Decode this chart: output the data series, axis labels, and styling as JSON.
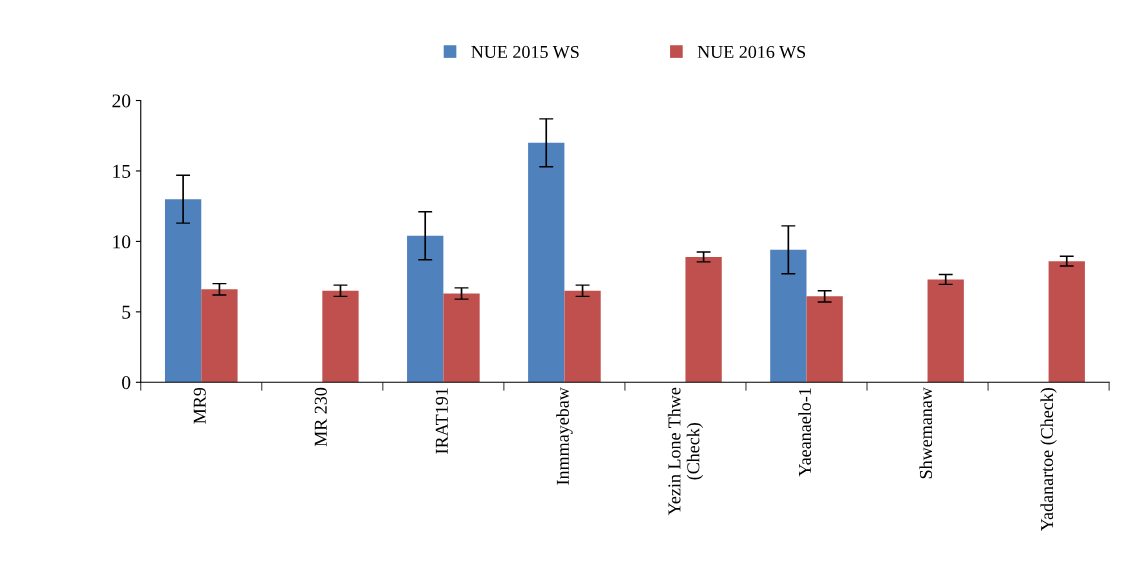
{
  "chart_data": {
    "type": "bar",
    "categories": [
      "MR9",
      "MR 230",
      "IRAT191",
      "Inmmayebaw",
      "Yezin Lone Thwe\n(Check)",
      "Yaeanaelo-1",
      "Shwemanaw",
      "Yadanartoe (Check)"
    ],
    "series": [
      {
        "name": "NUE 2015 WS",
        "color": "#4f81bd",
        "values": [
          13.0,
          null,
          10.4,
          17.0,
          null,
          9.4,
          null,
          null
        ],
        "errors": [
          1.7,
          null,
          1.7,
          1.7,
          null,
          1.7,
          null,
          null
        ]
      },
      {
        "name": "NUE 2016 WS",
        "color": "#c0504d",
        "values": [
          6.6,
          6.5,
          6.3,
          6.5,
          8.9,
          6.1,
          7.3,
          8.6
        ],
        "errors": [
          0.4,
          0.4,
          0.4,
          0.4,
          0.35,
          0.4,
          0.35,
          0.35
        ]
      }
    ],
    "ylim": [
      0,
      20
    ],
    "yticks": [
      0,
      5,
      10,
      15,
      20
    ],
    "grid": false,
    "legend": "top"
  }
}
